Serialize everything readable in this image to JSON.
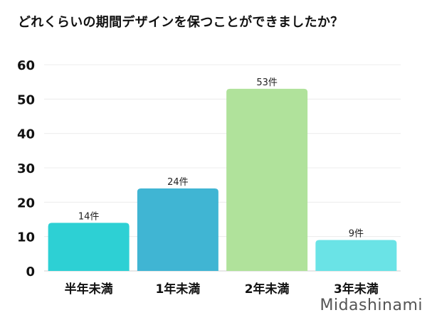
{
  "chart_data": {
    "type": "bar",
    "title": "どれくらいの期間デザインを保つことができましたか？",
    "categories": [
      "半年未満",
      "1年未満",
      "2年未満",
      "3年未満"
    ],
    "values": [
      14,
      24,
      53,
      9
    ],
    "data_labels": [
      "14件",
      "24件",
      "53件",
      "9件"
    ],
    "colors": [
      "#2dd0d4",
      "#40b5d3",
      "#b0e29b",
      "#6ae3e6"
    ],
    "ylim": [
      0,
      60
    ],
    "yticks": [
      0,
      10,
      20,
      30,
      40,
      50,
      60
    ],
    "xlabel": "",
    "ylabel": "",
    "grid": true,
    "legend": "none"
  },
  "watermark": "Midashinami"
}
